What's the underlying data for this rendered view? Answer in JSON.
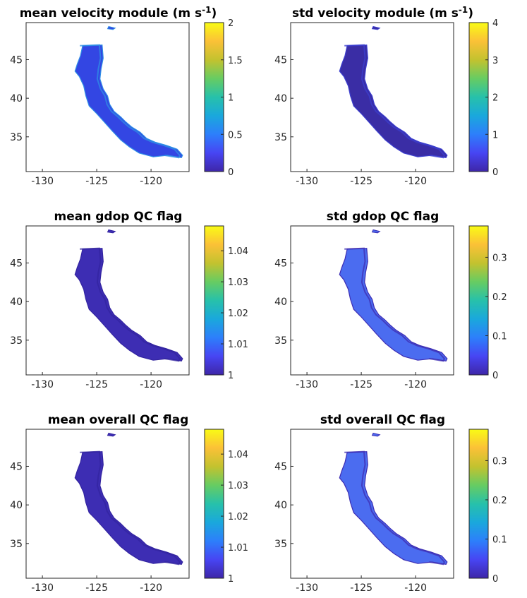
{
  "figure": {
    "panels": [
      {
        "title_main": "mean velocity module (m s",
        "title_sup": "-1",
        "title_tail": ")",
        "fill": "#3346e3",
        "accent": "#2f8fe6",
        "cbar_ticks": [
          "0",
          "0.5",
          "1",
          "1.5",
          "2"
        ]
      },
      {
        "title_main": "std velocity module (m s",
        "title_sup": "-1",
        "title_tail": ")",
        "fill": "#3a2da5",
        "accent": "#3c3fcf",
        "cbar_ticks": [
          "0",
          "1",
          "2",
          "3",
          "4"
        ]
      },
      {
        "title_main": "mean gdop QC flag",
        "title_sup": "",
        "title_tail": "",
        "fill": "#3d2db3",
        "accent": "#3324a0",
        "cbar_ticks": [
          "1",
          "1.01",
          "1.02",
          "1.03",
          "1.04"
        ]
      },
      {
        "title_main": "std gdop QC flag",
        "title_sup": "",
        "title_tail": "",
        "fill": "#4b6cf0",
        "accent": "#3d2db3",
        "cbar_ticks": [
          "0",
          "0.1",
          "0.2",
          "0.3"
        ]
      },
      {
        "title_main": "mean overall QC flag",
        "title_sup": "",
        "title_tail": "",
        "fill": "#3d2db3",
        "accent": "#3324a0",
        "cbar_ticks": [
          "1",
          "1.01",
          "1.02",
          "1.03",
          "1.04"
        ]
      },
      {
        "title_main": "std overall QC flag",
        "title_sup": "",
        "title_tail": "",
        "fill": "#4b6cf0",
        "accent": "#3d2db3",
        "cbar_ticks": [
          "0",
          "0.1",
          "0.2",
          "0.3"
        ]
      }
    ]
  },
  "chart_data": [
    {
      "type": "heatmap",
      "title": "mean velocity module (m s-1)",
      "x_ticks": [
        -130,
        -125,
        -120
      ],
      "y_ticks": [
        35,
        40,
        45
      ],
      "xlim": [
        -131.5,
        -116.5
      ],
      "ylim": [
        30.5,
        49.8
      ],
      "colorbar": {
        "range": [
          0,
          2
        ],
        "ticks": [
          0,
          0.5,
          1,
          1.5,
          2
        ]
      }
    },
    {
      "type": "heatmap",
      "title": "std velocity module (m s-1)",
      "x_ticks": [
        -130,
        -125,
        -120
      ],
      "y_ticks": [
        35,
        40,
        45
      ],
      "xlim": [
        -131.5,
        -116.5
      ],
      "ylim": [
        30.5,
        49.8
      ],
      "colorbar": {
        "range": [
          0,
          4
        ],
        "ticks": [
          0,
          1,
          2,
          3,
          4
        ]
      }
    },
    {
      "type": "heatmap",
      "title": "mean gdop QC flag",
      "x_ticks": [
        -130,
        -125,
        -120
      ],
      "y_ticks": [
        35,
        40,
        45
      ],
      "xlim": [
        -131.5,
        -116.5
      ],
      "ylim": [
        30.5,
        49.8
      ],
      "colorbar": {
        "range": [
          1,
          1.048
        ],
        "ticks": [
          1,
          1.01,
          1.02,
          1.03,
          1.04
        ]
      }
    },
    {
      "type": "heatmap",
      "title": "std gdop QC flag",
      "x_ticks": [
        -130,
        -125,
        -120
      ],
      "y_ticks": [
        35,
        40,
        45
      ],
      "xlim": [
        -131.5,
        -116.5
      ],
      "ylim": [
        30.5,
        49.8
      ],
      "colorbar": {
        "range": [
          0,
          0.38
        ],
        "ticks": [
          0,
          0.1,
          0.2,
          0.3
        ]
      }
    },
    {
      "type": "heatmap",
      "title": "mean overall QC flag",
      "x_ticks": [
        -130,
        -125,
        -120
      ],
      "y_ticks": [
        35,
        40,
        45
      ],
      "xlim": [
        -131.5,
        -116.5
      ],
      "ylim": [
        30.5,
        49.8
      ],
      "colorbar": {
        "range": [
          1,
          1.048
        ],
        "ticks": [
          1,
          1.01,
          1.02,
          1.03,
          1.04
        ]
      }
    },
    {
      "type": "heatmap",
      "title": "std overall QC flag",
      "x_ticks": [
        -130,
        -125,
        -120
      ],
      "y_ticks": [
        35,
        40,
        45
      ],
      "xlim": [
        -131.5,
        -116.5
      ],
      "ylim": [
        30.5,
        49.8
      ],
      "colorbar": {
        "range": [
          0,
          0.38
        ],
        "ticks": [
          0,
          0.1,
          0.2,
          0.3
        ]
      }
    }
  ]
}
